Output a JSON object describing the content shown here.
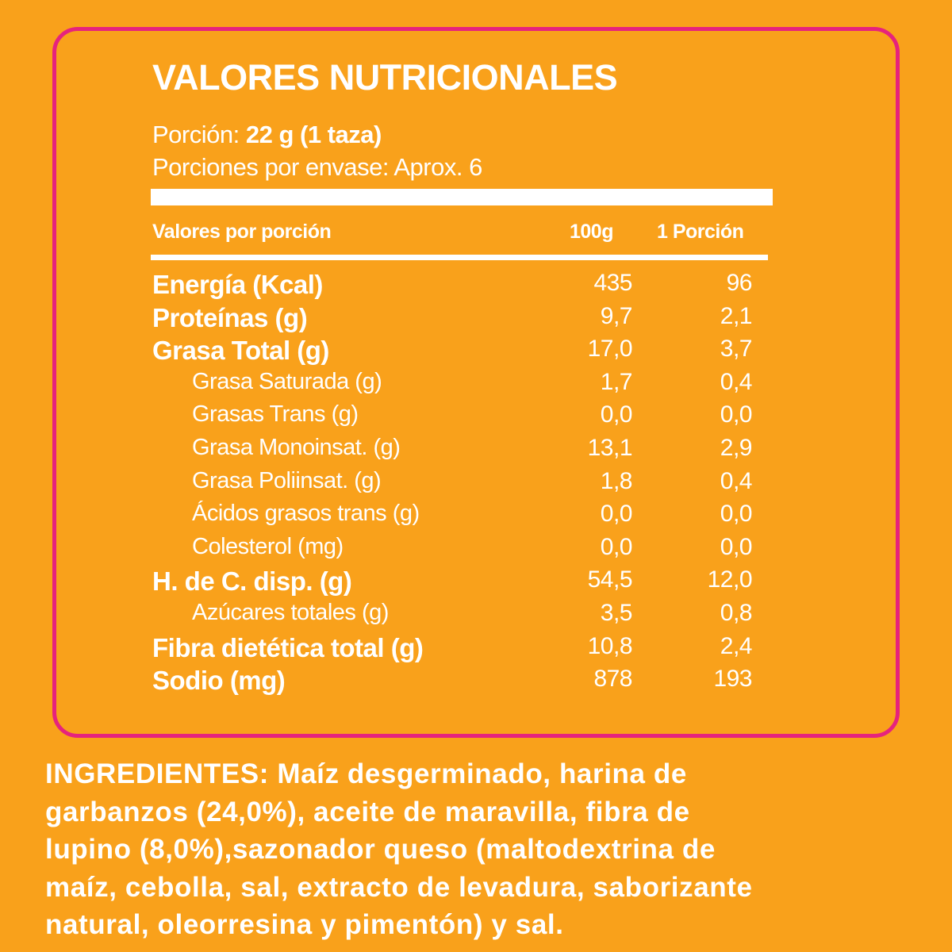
{
  "colors": {
    "background": "#F9A11B",
    "border": "#E6237D",
    "text": "#FFFFFF"
  },
  "title": "VALORES NUTRICIONALES",
  "portion": {
    "label": "Porción:",
    "value": "22 g (1 taza)"
  },
  "servings": "Porciones por envase: Aprox. 6",
  "header": {
    "label": "Valores por porción",
    "col1": "100g",
    "col2": "1 Porción"
  },
  "rows": [
    {
      "label": "Energía (Kcal)",
      "v100": "435",
      "vpor": "96",
      "level": "main"
    },
    {
      "label": "Proteínas (g)",
      "v100": "9,7",
      "vpor": "2,1",
      "level": "main"
    },
    {
      "label": "Grasa Total (g)",
      "v100": "17,0",
      "vpor": "3,7",
      "level": "main"
    },
    {
      "label": "Grasa Saturada (g)",
      "v100": "1,7",
      "vpor": "0,4",
      "level": "sub"
    },
    {
      "label": "Grasas Trans (g)",
      "v100": "0,0",
      "vpor": "0,0",
      "level": "sub"
    },
    {
      "label": "Grasa Monoinsat. (g)",
      "v100": "13,1",
      "vpor": "2,9",
      "level": "sub"
    },
    {
      "label": "Grasa Poliinsat. (g)",
      "v100": "1,8",
      "vpor": "0,4",
      "level": "sub"
    },
    {
      "label": "Ácidos grasos trans (g)",
      "v100": "0,0",
      "vpor": "0,0",
      "level": "sub"
    },
    {
      "label": "Colesterol (mg)",
      "v100": "0,0",
      "vpor": "0,0",
      "level": "sub"
    },
    {
      "label": "H. de C. disp. (g)",
      "v100": "54,5",
      "vpor": "12,0",
      "level": "main"
    },
    {
      "label": "Azúcares totales (g)",
      "v100": "3,5",
      "vpor": "0,8",
      "level": "sub"
    },
    {
      "label": "Fibra dietética total (g)",
      "v100": "10,8",
      "vpor": "2,4",
      "level": "main"
    },
    {
      "label": "Sodio (mg)",
      "v100": "878",
      "vpor": "193",
      "level": "main"
    }
  ],
  "ingredients": {
    "lines": [
      "INGREDIENTES: Maíz desgerminado, harina de",
      "garbanzos (24,0%), aceite de maravilla, fibra de",
      "lupino (8,0%),sazonador queso (maltodextrina de",
      "maíz, cebolla, sal, extracto de levadura, saborizante",
      "natural, oleorresina y pimentón) y sal."
    ]
  }
}
